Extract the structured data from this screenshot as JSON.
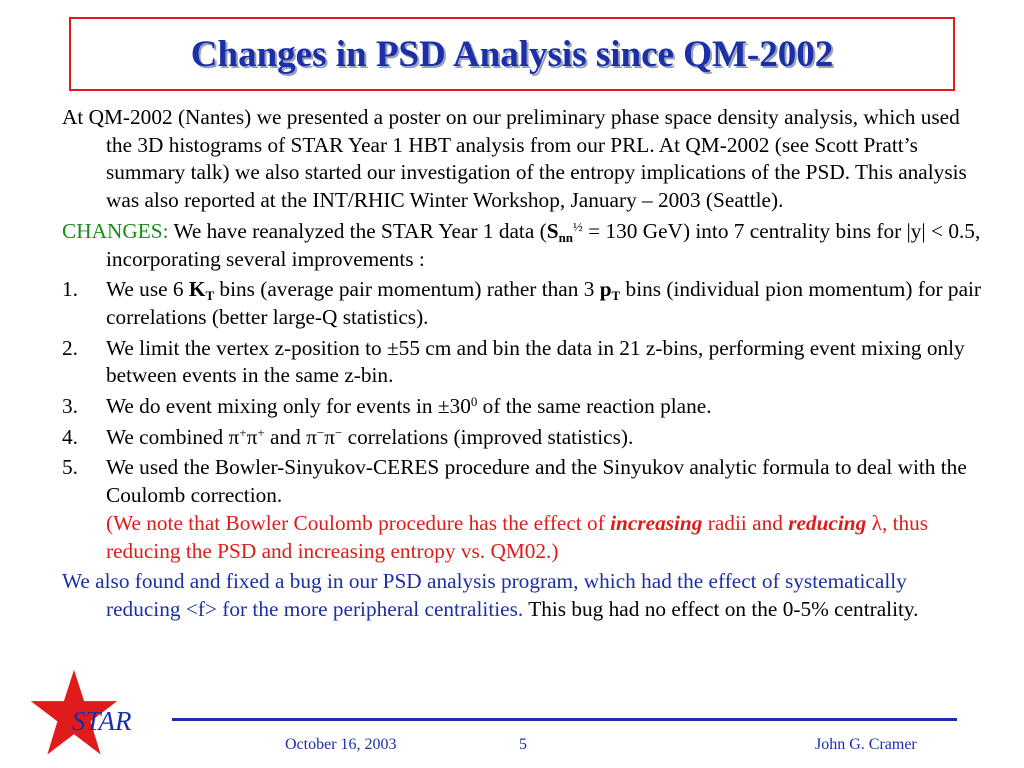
{
  "title": "Changes in PSD Analysis since QM-2002",
  "p1": "At QM-2002 (Nantes) we presented a poster on our preliminary phase space density analysis, which used the 3D histograms of STAR Year 1 HBT analysis from our PRL.  At QM-2002 (see Scott Pratt’s summary talk) we also started our investigation of the entropy implications of the PSD.  This analysis was also reported at the INT/RHIC Winter Workshop, January – 2003 (Seattle).",
  "changes": {
    "label": "CHANGES:",
    "text_a": "  We have reanalyzed the STAR Year 1 data (",
    "s": "S",
    "nn": "nn",
    "half": "½",
    "text_b": " = 130 GeV) into 7 centrality bins for |y| < 0.5, incorporating several improvements :"
  },
  "items": [
    {
      "num": "1.",
      "a": "We use 6 ",
      "kt": "K",
      "t": "T",
      "b": " bins (average pair momentum) rather than 3 ",
      "pt": "p",
      "t2": "T",
      "c": " bins (individual pion momentum) for pair correlations (better large-Q statistics)."
    },
    {
      "num": "2.",
      "text": "We limit the vertex z-position to ±55 cm and bin the data in 21 z-bins, performing event mixing only between events in the same z-bin."
    },
    {
      "num": "3.",
      "a": "We do event mixing only for events in ±30",
      "sup": "0",
      "b": " of the same reaction plane."
    },
    {
      "num": "4.",
      "a": "We combined π",
      "s1": "+",
      "b": "π",
      "s2": "+",
      "c": " and π",
      "s3": "−",
      "d": "π",
      "s4": "−",
      "e": " correlations (improved statistics)."
    },
    {
      "num": "5.",
      "text": "We used the Bowler-Sinyukov-CERES procedure and the Sinyukov analytic formula to deal with the Coulomb correction.",
      "note_a": "(We note that Bowler Coulomb procedure has the effect of ",
      "increasing": "increasing",
      "note_b": " radii and ",
      "reducing": "reducing",
      "note_c": " λ, thus reducing the PSD and increasing entropy vs. QM02.)"
    }
  ],
  "bug": {
    "blue": "We also found and fixed a bug in our PSD analysis program, which had the effect of systematically reducing <f> for the more peripheral centralities.",
    "black": "  This bug had no effect on the 0-5% centrality."
  },
  "footer": {
    "logo_text": "STAR",
    "date": "October 16, 2003",
    "page": "5",
    "author": "John G. Cramer"
  },
  "colors": {
    "title": "#1a2fa8",
    "accent_red": "#e01b1b",
    "green": "#1b8a1b"
  }
}
